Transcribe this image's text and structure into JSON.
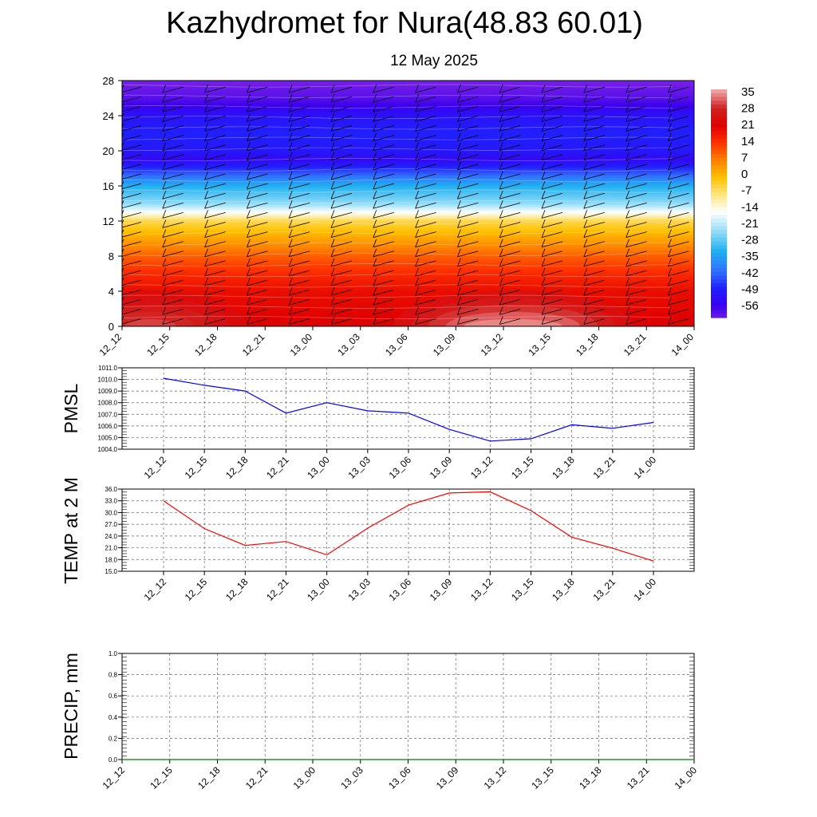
{
  "header": {
    "title": "Kazhydromet for Nura(48.83 60.01)",
    "subtitle": "12 May 2025"
  },
  "colors": {
    "pmsl_line": "#0000ff",
    "temp_line": "#ff0000",
    "precip_line": "#008000",
    "grid": "#666666"
  },
  "chart_data": [
    {
      "type": "heatmap",
      "title": "",
      "xlabel": "",
      "ylabel": "",
      "x_ticks": [
        "12_12",
        "12_15",
        "12_18",
        "12_21",
        "13_00",
        "13_03",
        "13_06",
        "13_09",
        "13_12",
        "13_15",
        "13_18",
        "13_21",
        "14_00"
      ],
      "y_ticks": [
        "0",
        "4",
        "8",
        "12",
        "16",
        "20",
        "24",
        "28"
      ],
      "ylim": [
        0,
        28
      ],
      "colorbar_labels": [
        "35",
        "28",
        "21",
        "14",
        "7",
        "0",
        "-7",
        "-14",
        "-21",
        "-28",
        "-35",
        "-42",
        "-49",
        "-56"
      ],
      "colorbar_range": [
        -56,
        35
      ],
      "colormap_stops": [
        {
          "value": -60,
          "color": "#8a2be2"
        },
        {
          "value": -52,
          "color": "#3a00f0"
        },
        {
          "value": -45,
          "color": "#2020ff"
        },
        {
          "value": -38,
          "color": "#3070ff"
        },
        {
          "value": -30,
          "color": "#1fb0f0"
        },
        {
          "value": -21,
          "color": "#a0e0f8"
        },
        {
          "value": -14,
          "color": "#ffffff"
        },
        {
          "value": -7,
          "color": "#ffe680"
        },
        {
          "value": 0,
          "color": "#ffc000"
        },
        {
          "value": 7,
          "color": "#ff8000"
        },
        {
          "value": 14,
          "color": "#ff3000"
        },
        {
          "value": 21,
          "color": "#e00000"
        },
        {
          "value": 28,
          "color": "#d02020"
        },
        {
          "value": 35,
          "color": "#f0a0a0"
        }
      ],
      "vertical_profile": [
        {
          "level": 0,
          "value": 22
        },
        {
          "level": 2,
          "value": 20
        },
        {
          "level": 4,
          "value": 19
        },
        {
          "level": 6,
          "value": 15
        },
        {
          "level": 8,
          "value": 10
        },
        {
          "level": 10,
          "value": 3
        },
        {
          "level": 12,
          "value": -4
        },
        {
          "level": 13,
          "value": -14
        },
        {
          "level": 14,
          "value": -22
        },
        {
          "level": 16,
          "value": -30
        },
        {
          "level": 18,
          "value": -44
        },
        {
          "level": 19,
          "value": -50
        },
        {
          "level": 20,
          "value": -47
        },
        {
          "level": 22,
          "value": -45
        },
        {
          "level": 24,
          "value": -48
        },
        {
          "level": 26,
          "value": -55
        },
        {
          "level": 28,
          "value": -58
        }
      ],
      "surface_warm_spots": [
        {
          "x_index": 0.6,
          "value": 30
        },
        {
          "x_index": 8.2,
          "value": 34
        }
      ]
    },
    {
      "type": "line",
      "ylabel": "PMSL",
      "x": [
        "12_12",
        "12_15",
        "12_18",
        "12_21",
        "13_00",
        "13_03",
        "13_06",
        "13_09",
        "13_12",
        "13_15",
        "13_18",
        "13_21",
        "14_00"
      ],
      "y_ticks": [
        "1011.0",
        "1010.0",
        "1009.0",
        "1008.0",
        "1007.0",
        "1006.0",
        "1005.0",
        "1004.0"
      ],
      "ylim": [
        1004,
        1011
      ],
      "series": [
        {
          "values": [
            1010.1,
            1009.5,
            1009.0,
            1007.1,
            1008.0,
            1007.3,
            1007.1,
            1005.7,
            1004.7,
            1004.9,
            1006.1,
            1005.8,
            1006.3
          ]
        }
      ],
      "grid": true
    },
    {
      "type": "line",
      "ylabel": "TEMP at 2 M",
      "x": [
        "12_12",
        "12_15",
        "12_18",
        "12_21",
        "13_00",
        "13_03",
        "13_06",
        "13_09",
        "13_12",
        "13_15",
        "13_18",
        "13_21",
        "14_00"
      ],
      "y_ticks": [
        "36.0",
        "33.0",
        "30.0",
        "27.0",
        "24.0",
        "21.0",
        "18.0",
        "15.0"
      ],
      "ylim": [
        15,
        36
      ],
      "series": [
        {
          "values": [
            33.0,
            25.9,
            21.6,
            22.6,
            19.2,
            26.0,
            31.9,
            35.0,
            35.3,
            30.5,
            23.7,
            20.9,
            17.6
          ]
        }
      ],
      "grid": true
    },
    {
      "type": "line",
      "ylabel": "PRECIP, mm",
      "x": [
        "12_12",
        "12_15",
        "12_18",
        "12_21",
        "13_00",
        "13_03",
        "13_06",
        "13_09",
        "13_12",
        "13_15",
        "13_18",
        "13_21",
        "14_00"
      ],
      "y_ticks": [
        "1.0",
        "0.8",
        "0.6",
        "0.4",
        "0.2",
        "0.0"
      ],
      "ylim": [
        0,
        1
      ],
      "series": [
        {
          "values": [
            0,
            0,
            0,
            0,
            0,
            0,
            0,
            0,
            0,
            0,
            0,
            0,
            0
          ]
        }
      ],
      "grid": true
    }
  ]
}
